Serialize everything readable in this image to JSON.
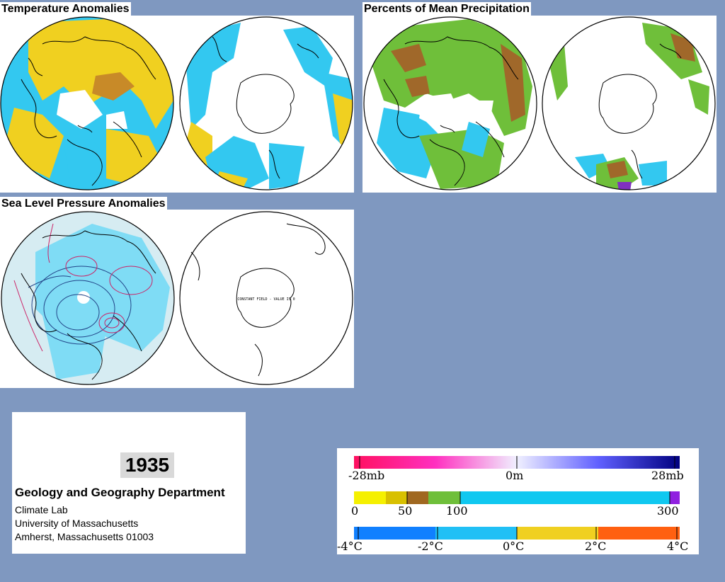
{
  "panels": {
    "temperature": {
      "title": "Temperature Anomalies"
    },
    "precipitation": {
      "title": "Percents of Mean Precipitation"
    },
    "pressure": {
      "title": "Sea Level Pressure Anomalies",
      "south_map_note": "CONSTANT FIELD - VALUE IS 0"
    }
  },
  "info": {
    "year": "1935",
    "department": "Geology and Geography Department",
    "lab": "Climate Lab",
    "university": "University of Massachusetts",
    "address": "Amherst, Massachusetts 01003"
  },
  "legends": {
    "pressure": {
      "labels": [
        "-28mb",
        "0m",
        "28mb"
      ]
    },
    "precipitation": {
      "labels": [
        "0",
        "50",
        "100",
        "300"
      ]
    },
    "temperature": {
      "labels": [
        "-4°C",
        "-2°C",
        "0°C",
        "2°C",
        "4°C"
      ]
    }
  },
  "colors": {
    "background": "#7f98c0",
    "ocean_cyan": "#33c8f0",
    "warm_yellow": "#f0d020",
    "precip_green": "#6fbf3a",
    "precip_brown": "#a0682a",
    "pressure_contour_red": "#cc2266",
    "pressure_contour_blue": "#224488"
  }
}
